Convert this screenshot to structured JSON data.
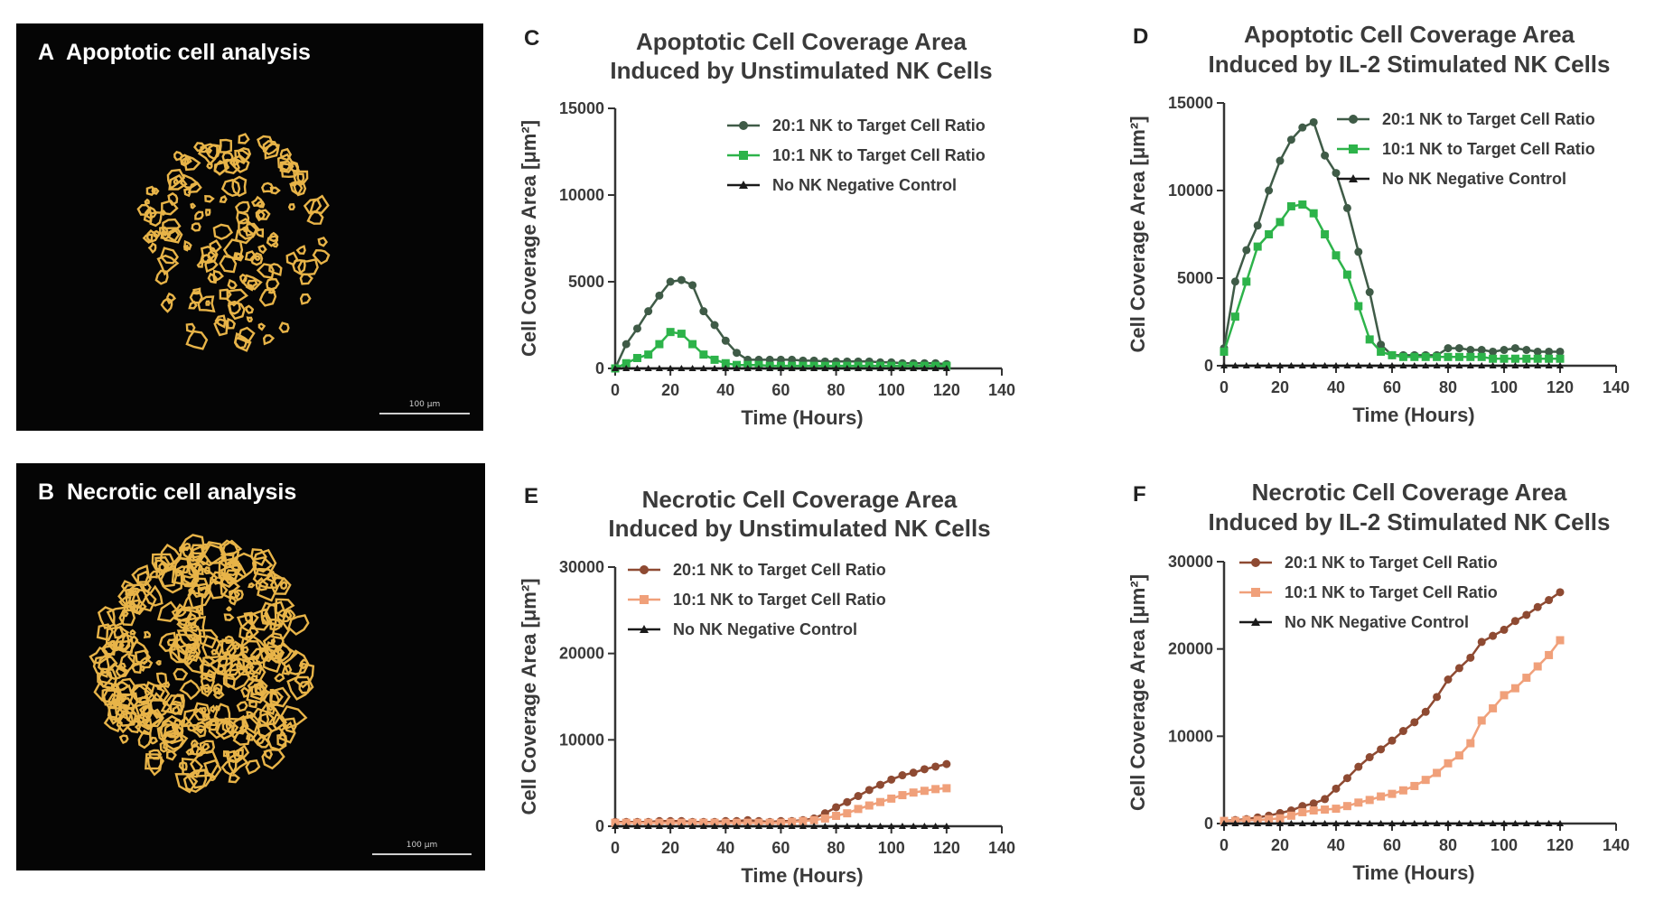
{
  "panels": {
    "a": {
      "letter": "A",
      "title": "Apoptotic cell analysis",
      "scale_bar": "100 μm",
      "outline_color": "#e8b448"
    },
    "b": {
      "letter": "B",
      "title": "Necrotic cell analysis",
      "scale_bar": "100 μm",
      "outline_color": "#e8b448"
    }
  },
  "chart_data": [
    {
      "id": "C",
      "type": "line",
      "title": [
        "Apoptotic Cell Coverage Area",
        "Induced by Unstimulated NK Cells"
      ],
      "xlabel": "Time (Hours)",
      "ylabel": "Cell Coverage Area [μm²]",
      "xlim": [
        0,
        140
      ],
      "ylim": [
        0,
        15000
      ],
      "xticks": [
        "0",
        "20",
        "40",
        "60",
        "80",
        "100",
        "120",
        "140"
      ],
      "yticks": [
        "0",
        "5000",
        "10000",
        "15000"
      ],
      "legend_position": "top-right",
      "x": [
        0,
        4,
        8,
        12,
        16,
        20,
        24,
        28,
        32,
        36,
        40,
        44,
        48,
        52,
        56,
        60,
        64,
        68,
        72,
        76,
        80,
        84,
        88,
        92,
        96,
        100,
        104,
        108,
        112,
        116,
        120
      ],
      "series": [
        {
          "name": "20:1 NK to Target Cell Ratio",
          "color": "#3f5b47",
          "marker": "circle",
          "values": [
            0,
            1400,
            2300,
            3300,
            4200,
            5000,
            5100,
            4800,
            3300,
            2500,
            1600,
            900,
            500,
            500,
            500,
            500,
            500,
            450,
            450,
            400,
            400,
            400,
            400,
            400,
            350,
            350,
            300,
            300,
            300,
            300,
            250
          ]
        },
        {
          "name": "10:1 NK to Target Cell Ratio",
          "color": "#2db34a",
          "marker": "square",
          "values": [
            0,
            300,
            600,
            800,
            1400,
            2100,
            2000,
            1400,
            800,
            500,
            300,
            200,
            200,
            200,
            150,
            150,
            150,
            150,
            150,
            150,
            150,
            150,
            150,
            150,
            150,
            150,
            150,
            150,
            150,
            150,
            150
          ]
        },
        {
          "name": "No NK Negative Control",
          "color": "#1a1a1a",
          "marker": "triangle",
          "values": [
            0,
            0,
            0,
            0,
            0,
            0,
            0,
            0,
            0,
            0,
            0,
            0,
            0,
            0,
            0,
            0,
            0,
            0,
            0,
            0,
            0,
            0,
            0,
            0,
            0,
            0,
            0,
            0,
            0,
            0,
            0
          ]
        }
      ]
    },
    {
      "id": "D",
      "type": "line",
      "title": [
        "Apoptotic Cell Coverage Area",
        "Induced by IL-2 Stimulated NK Cells"
      ],
      "xlabel": "Time (Hours)",
      "ylabel": "Cell Coverage Area [μm²]",
      "xlim": [
        0,
        140
      ],
      "ylim": [
        0,
        15000
      ],
      "xticks": [
        "0",
        "20",
        "40",
        "60",
        "80",
        "100",
        "120",
        "140"
      ],
      "yticks": [
        "0",
        "5000",
        "10000",
        "15000"
      ],
      "legend_position": "top-right",
      "x": [
        0,
        4,
        8,
        12,
        16,
        20,
        24,
        28,
        32,
        36,
        40,
        44,
        48,
        52,
        56,
        60,
        64,
        68,
        72,
        76,
        80,
        84,
        88,
        92,
        96,
        100,
        104,
        108,
        112,
        116,
        120
      ],
      "series": [
        {
          "name": "20:1 NK to Target Cell Ratio",
          "color": "#3f5b47",
          "marker": "circle",
          "values": [
            1000,
            4800,
            6600,
            8000,
            10000,
            11700,
            12900,
            13600,
            13900,
            12000,
            11000,
            9000,
            6500,
            4200,
            1200,
            600,
            600,
            600,
            600,
            600,
            1000,
            1000,
            900,
            900,
            800,
            900,
            1000,
            900,
            800,
            800,
            800
          ]
        },
        {
          "name": "10:1 NK to Target Cell Ratio",
          "color": "#2db34a",
          "marker": "square",
          "values": [
            800,
            2800,
            4800,
            6800,
            7500,
            8200,
            9100,
            9200,
            8700,
            7500,
            6300,
            5200,
            3400,
            1500,
            800,
            600,
            500,
            500,
            500,
            500,
            500,
            500,
            500,
            500,
            400,
            400,
            400,
            400,
            400,
            400,
            400
          ]
        },
        {
          "name": "No NK Negative Control",
          "color": "#1a1a1a",
          "marker": "triangle",
          "values": [
            0,
            0,
            0,
            0,
            0,
            0,
            0,
            0,
            0,
            0,
            0,
            0,
            0,
            0,
            0,
            0,
            0,
            0,
            0,
            0,
            0,
            0,
            0,
            0,
            0,
            0,
            0,
            0,
            0,
            0,
            0
          ]
        }
      ]
    },
    {
      "id": "E",
      "type": "line",
      "title": [
        "Necrotic Cell Coverage Area",
        "Induced by Unstimulated NK Cells"
      ],
      "xlabel": "Time (Hours)",
      "ylabel": "Cell Coverage Area [μm²]",
      "xlim": [
        0,
        140
      ],
      "ylim": [
        0,
        30000
      ],
      "xticks": [
        "0",
        "20",
        "40",
        "60",
        "80",
        "100",
        "120",
        "140"
      ],
      "yticks": [
        "0",
        "10000",
        "20000",
        "30000"
      ],
      "legend_position": "top-left",
      "x": [
        0,
        4,
        8,
        12,
        16,
        20,
        24,
        28,
        32,
        36,
        40,
        44,
        48,
        52,
        56,
        60,
        64,
        68,
        72,
        76,
        80,
        84,
        88,
        92,
        96,
        100,
        104,
        108,
        112,
        116,
        120
      ],
      "series": [
        {
          "name": "20:1 NK to Target Cell Ratio",
          "color": "#8e4a32",
          "marker": "circle",
          "values": [
            500,
            500,
            500,
            500,
            600,
            600,
            600,
            500,
            500,
            500,
            600,
            600,
            700,
            600,
            500,
            600,
            600,
            700,
            900,
            1500,
            2200,
            2800,
            3500,
            4200,
            4800,
            5400,
            5900,
            6200,
            6600,
            6900,
            7200
          ]
        },
        {
          "name": "10:1 NK to Target Cell Ratio",
          "color": "#f0a07a",
          "marker": "square",
          "values": [
            400,
            400,
            400,
            400,
            400,
            400,
            400,
            400,
            400,
            400,
            400,
            400,
            400,
            400,
            400,
            400,
            500,
            600,
            700,
            900,
            1200,
            1500,
            2000,
            2400,
            2800,
            3200,
            3600,
            3900,
            4100,
            4300,
            4400
          ]
        },
        {
          "name": "No NK Negative Control",
          "color": "#1a1a1a",
          "marker": "triangle",
          "values": [
            0,
            0,
            0,
            0,
            0,
            0,
            0,
            0,
            0,
            0,
            0,
            0,
            0,
            0,
            0,
            0,
            0,
            0,
            0,
            0,
            0,
            0,
            0,
            0,
            0,
            0,
            0,
            0,
            0,
            0,
            0
          ]
        }
      ]
    },
    {
      "id": "F",
      "type": "line",
      "title": [
        "Necrotic Cell Coverage Area",
        "Induced by IL-2 Stimulated NK Cells"
      ],
      "xlabel": "Time (Hours)",
      "ylabel": "Cell Coverage Area [μm²]",
      "xlim": [
        0,
        140
      ],
      "ylim": [
        0,
        30000
      ],
      "xticks": [
        "0",
        "20",
        "40",
        "60",
        "80",
        "100",
        "120",
        "140"
      ],
      "yticks": [
        "0",
        "10000",
        "20000",
        "30000"
      ],
      "legend_position": "top-left",
      "x": [
        0,
        4,
        8,
        12,
        16,
        20,
        24,
        28,
        32,
        36,
        40,
        44,
        48,
        52,
        56,
        60,
        64,
        68,
        72,
        76,
        80,
        84,
        88,
        92,
        96,
        100,
        104,
        108,
        112,
        116,
        120
      ],
      "series": [
        {
          "name": "20:1 NK to Target Cell Ratio",
          "color": "#8e4a32",
          "marker": "circle",
          "values": [
            300,
            400,
            500,
            700,
            900,
            1200,
            1500,
            2000,
            2300,
            2800,
            4000,
            5200,
            6500,
            7600,
            8500,
            9500,
            10600,
            11600,
            12800,
            14500,
            16500,
            17800,
            19000,
            20800,
            21500,
            22200,
            23200,
            23900,
            24800,
            25600,
            26500
          ]
        },
        {
          "name": "10:1 NK to Target Cell Ratio",
          "color": "#f0a07a",
          "marker": "square",
          "values": [
            300,
            300,
            400,
            400,
            500,
            600,
            900,
            1300,
            1500,
            1600,
            1700,
            2000,
            2400,
            2700,
            3100,
            3400,
            3800,
            4300,
            5000,
            5800,
            6900,
            7800,
            9200,
            11800,
            13200,
            14700,
            15500,
            16700,
            18000,
            19300,
            21000
          ]
        },
        {
          "name": "No NK Negative Control",
          "color": "#1a1a1a",
          "marker": "triangle",
          "values": [
            0,
            0,
            0,
            0,
            0,
            0,
            0,
            0,
            0,
            0,
            0,
            0,
            0,
            0,
            0,
            0,
            0,
            0,
            0,
            0,
            0,
            0,
            0,
            0,
            0,
            0,
            0,
            0,
            0,
            0,
            0
          ]
        }
      ]
    }
  ]
}
